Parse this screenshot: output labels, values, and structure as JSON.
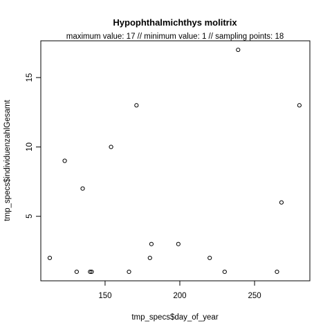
{
  "chart_data": {
    "type": "scatter",
    "title": "Hypophthalmichthys molitrix",
    "subtitle": "maximum value: 17  //  minimum value: 1  // sampling points: 18",
    "xlabel": "tmp_specs$day_of_year",
    "ylabel": "tmp_specs$individuenzahlGesamt",
    "xlim": [
      107,
      287
    ],
    "ylim": [
      0.35,
      17.65
    ],
    "x_ticks": [
      150,
      200,
      250
    ],
    "y_ticks": [
      5,
      10,
      15
    ],
    "grid": false,
    "points": [
      {
        "x": 113,
        "y": 2
      },
      {
        "x": 123,
        "y": 9
      },
      {
        "x": 131,
        "y": 1
      },
      {
        "x": 135,
        "y": 7
      },
      {
        "x": 140,
        "y": 1
      },
      {
        "x": 141,
        "y": 1
      },
      {
        "x": 154,
        "y": 10
      },
      {
        "x": 166,
        "y": 1
      },
      {
        "x": 171,
        "y": 13
      },
      {
        "x": 180,
        "y": 2
      },
      {
        "x": 181,
        "y": 3
      },
      {
        "x": 199,
        "y": 3
      },
      {
        "x": 220,
        "y": 2
      },
      {
        "x": 230,
        "y": 1
      },
      {
        "x": 239,
        "y": 17
      },
      {
        "x": 265,
        "y": 1
      },
      {
        "x": 268,
        "y": 6
      },
      {
        "x": 280,
        "y": 13
      }
    ]
  }
}
